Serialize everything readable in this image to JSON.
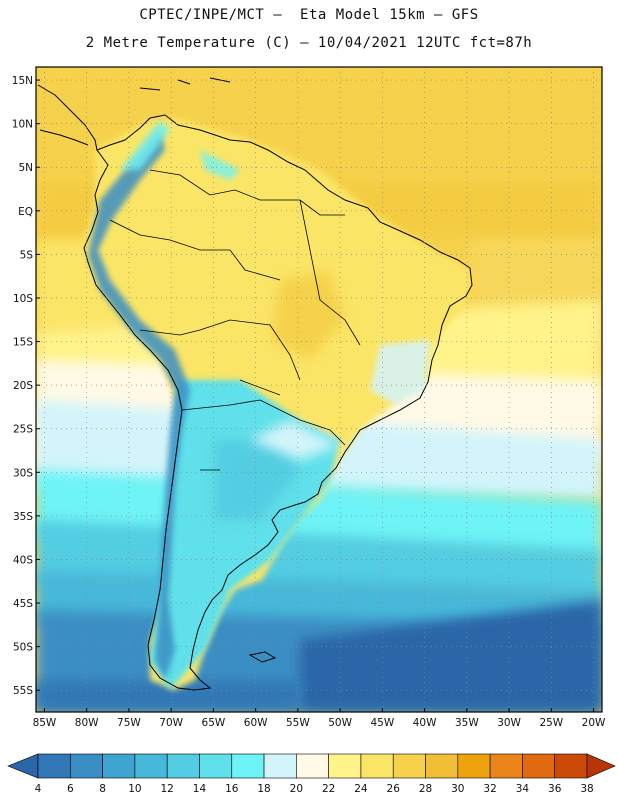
{
  "header": {
    "title_line1": "CPTEC/INPE/MCT –  Eta Model 15km – GFS",
    "title_line2": "2 Metre Temperature (C) – 10/04/2021 12UTC fct=87h"
  },
  "map": {
    "variable": "2 Metre Temperature",
    "units": "C",
    "lat_ticks": [
      "15N",
      "10N",
      "5N",
      "EQ",
      "5S",
      "10S",
      "15S",
      "20S",
      "25S",
      "30S",
      "35S",
      "40S",
      "45S",
      "50S",
      "55S"
    ],
    "lat_values": [
      15,
      10,
      5,
      0,
      -5,
      -10,
      -15,
      -20,
      -25,
      -30,
      -35,
      -40,
      -45,
      -50,
      -55
    ],
    "lon_ticks": [
      "85W",
      "80W",
      "75W",
      "70W",
      "65W",
      "60W",
      "55W",
      "50W",
      "45W",
      "40W",
      "35W",
      "30W",
      "25W",
      "20W"
    ],
    "lon_values": [
      -85,
      -80,
      -75,
      -70,
      -65,
      -60,
      -55,
      -50,
      -45,
      -40,
      -35,
      -30,
      -25,
      -20
    ],
    "lon_range": [
      -86,
      -19
    ],
    "lat_range": [
      -57.5,
      16.5
    ]
  },
  "colorbar": {
    "labels": [
      "4",
      "6",
      "8",
      "10",
      "12",
      "14",
      "16",
      "18",
      "20",
      "22",
      "24",
      "26",
      "28",
      "30",
      "32",
      "34",
      "36",
      "38"
    ],
    "colors": [
      "#2a66a8",
      "#3278b6",
      "#3b8ec4",
      "#3fa4d0",
      "#47b8da",
      "#52cde2",
      "#5fe0ea",
      "#6ef3f6",
      "#d3f4fb",
      "#fff9e6",
      "#fff38a",
      "#fbe566",
      "#f6d24c",
      "#f1bf36",
      "#eea20e",
      "#ea8519",
      "#e06a10",
      "#cc4a08",
      "#b83606"
    ]
  }
}
